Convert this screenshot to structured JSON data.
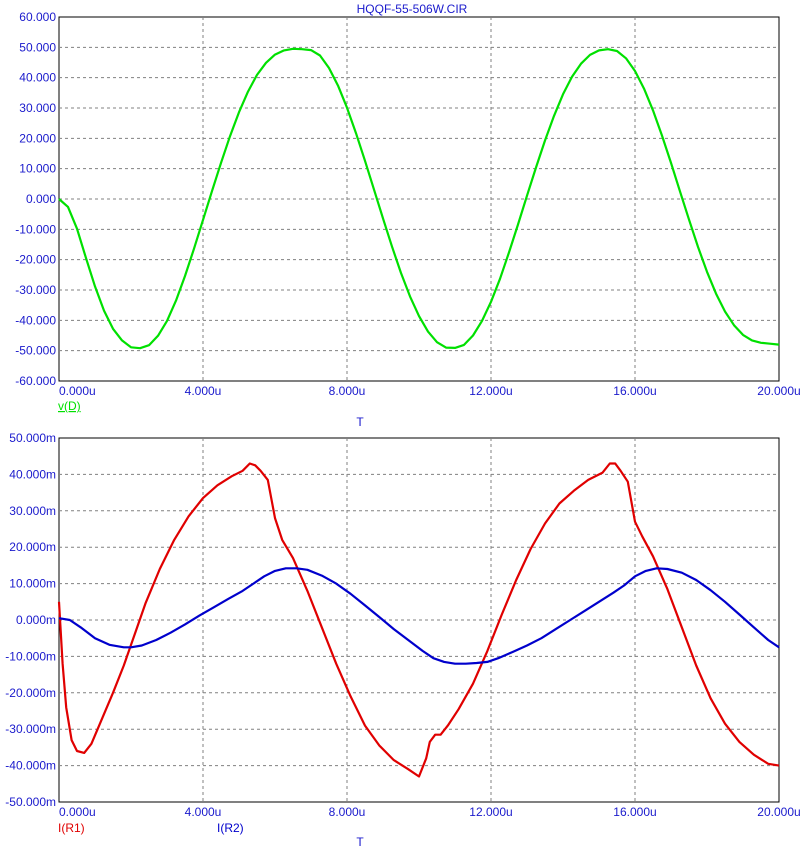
{
  "title": "HQQF-55-506W.CIR",
  "colors": {
    "axis_text": "#1a1acc",
    "grid": "#808080",
    "v_trace": "#00e000",
    "ir1_trace": "#e00000",
    "ir2_trace": "#0000cc"
  },
  "chart_data": [
    {
      "type": "line",
      "title": "HQQF-55-506W.CIR",
      "xlabel": "T",
      "xlim": [
        0,
        20
      ],
      "x_unit": "u",
      "ylim": [
        -60,
        60
      ],
      "x_ticks": [
        "0.000u",
        "4.000u",
        "8.000u",
        "12.000u",
        "16.000u",
        "20.000u"
      ],
      "y_ticks": [
        "60.000",
        "50.000",
        "40.000",
        "30.000",
        "20.000",
        "10.000",
        "0.000",
        "-10.000",
        "-20.000",
        "-30.000",
        "-40.000",
        "-50.000",
        "-60.000"
      ],
      "grid": true,
      "series": [
        {
          "name": "v(D)",
          "color": "#00e000",
          "x": [
            0,
            0.25,
            0.5,
            0.75,
            1.0,
            1.25,
            1.5,
            1.75,
            2.0,
            2.25,
            2.5,
            2.75,
            3.0,
            3.25,
            3.5,
            3.75,
            4.0,
            4.25,
            4.5,
            4.75,
            5.0,
            5.25,
            5.5,
            5.75,
            6.0,
            6.25,
            6.5,
            6.75,
            7.0,
            7.25,
            7.5,
            7.75,
            8.0,
            8.25,
            8.5,
            8.75,
            9.0,
            9.25,
            9.5,
            9.75,
            10.0,
            10.25,
            10.5,
            10.75,
            11.0,
            11.25,
            11.5,
            11.75,
            12.0,
            12.25,
            12.5,
            12.75,
            13.0,
            13.25,
            13.5,
            13.75,
            14.0,
            14.25,
            14.5,
            14.75,
            15.0,
            15.25,
            15.5,
            15.75,
            16.0,
            16.25,
            16.5,
            16.75,
            17.0,
            17.25,
            17.5,
            17.75,
            18.0,
            18.25,
            18.5,
            18.75,
            19.0,
            19.25,
            19.5,
            19.75,
            20.0
          ],
          "values": [
            0.0,
            -2.6,
            -9.8,
            -19.5,
            -28.8,
            -36.8,
            -42.8,
            -46.6,
            -48.9,
            -49.2,
            -48.2,
            -45.1,
            -40.2,
            -33.5,
            -25.4,
            -16.4,
            -6.9,
            2.6,
            11.9,
            20.7,
            28.6,
            35.4,
            40.9,
            44.9,
            47.6,
            49.0,
            49.5,
            49.4,
            49.1,
            47.3,
            43.2,
            37.4,
            30.1,
            21.7,
            12.6,
            3.1,
            -6.4,
            -15.7,
            -24.4,
            -32.1,
            -38.6,
            -43.7,
            -47.2,
            -49.0,
            -49.1,
            -48.1,
            -45.0,
            -40.2,
            -33.9,
            -26.3,
            -17.6,
            -8.4,
            1.1,
            10.4,
            19.3,
            27.4,
            34.5,
            40.3,
            44.6,
            47.5,
            49.0,
            49.4,
            48.8,
            46.4,
            42.2,
            36.4,
            29.2,
            20.9,
            11.9,
            2.5,
            -6.8,
            -15.8,
            -24.0,
            -31.2,
            -37.1,
            -41.6,
            -44.8,
            -46.6,
            -47.4,
            -47.7,
            -48.0
          ]
        }
      ]
    },
    {
      "type": "line",
      "xlabel": "T",
      "xlim": [
        0,
        20
      ],
      "x_unit": "u",
      "ylim": [
        -50,
        50
      ],
      "y_unit": "m",
      "x_ticks": [
        "0.000u",
        "4.000u",
        "8.000u",
        "12.000u",
        "16.000u",
        "20.000u"
      ],
      "y_ticks": [
        "50.000m",
        "40.000m",
        "30.000m",
        "20.000m",
        "10.000m",
        "0.000m",
        "-10.000m",
        "-20.000m",
        "-30.000m",
        "-40.000m",
        "-50.000m"
      ],
      "grid": true,
      "series": [
        {
          "name": "I(R1)",
          "color": "#e00000",
          "x": [
            0,
            0.1,
            0.2,
            0.35,
            0.5,
            0.7,
            0.9,
            1.2,
            1.5,
            1.8,
            2.1,
            2.4,
            2.8,
            3.2,
            3.6,
            4.0,
            4.4,
            4.8,
            5.1,
            5.3,
            5.45,
            5.6,
            5.8,
            6.0,
            6.2,
            6.5,
            6.9,
            7.3,
            7.7,
            8.1,
            8.5,
            8.9,
            9.3,
            9.7,
            10.0,
            10.2,
            10.3,
            10.45,
            10.6,
            10.8,
            11.1,
            11.5,
            11.9,
            12.3,
            12.7,
            13.1,
            13.5,
            13.9,
            14.3,
            14.7,
            15.1,
            15.3,
            15.45,
            15.6,
            15.8,
            16.0,
            16.2,
            16.5,
            16.9,
            17.3,
            17.7,
            18.1,
            18.5,
            18.9,
            19.3,
            19.7,
            20.0
          ],
          "values": [
            5.0,
            -12.0,
            -24.0,
            -33.0,
            -36.0,
            -36.5,
            -34.0,
            -27.0,
            -20.0,
            -12.5,
            -4.0,
            4.5,
            14.0,
            22.0,
            28.5,
            33.5,
            37.0,
            39.5,
            41.0,
            43.0,
            42.5,
            41.0,
            38.5,
            28.0,
            22.0,
            17.0,
            8.0,
            -2.0,
            -12.0,
            -21.0,
            -29.0,
            -34.5,
            -38.5,
            -41.0,
            -43.0,
            -38.0,
            -33.5,
            -31.5,
            -31.5,
            -29.0,
            -24.5,
            -17.5,
            -8.5,
            1.5,
            11.0,
            19.5,
            26.5,
            32.0,
            35.5,
            38.5,
            40.5,
            43.0,
            43.0,
            41.0,
            38.0,
            27.0,
            23.0,
            17.5,
            8.5,
            -2.0,
            -12.5,
            -21.5,
            -28.5,
            -33.5,
            -37.0,
            -39.5,
            -40.0
          ]
        },
        {
          "name": "I(R2)",
          "color": "#0000cc",
          "x": [
            0,
            0.3,
            0.6,
            1.0,
            1.4,
            1.8,
            2.0,
            2.3,
            2.7,
            3.1,
            3.5,
            3.9,
            4.3,
            4.7,
            5.1,
            5.4,
            5.7,
            6.0,
            6.3,
            6.6,
            6.9,
            7.3,
            7.7,
            8.1,
            8.5,
            8.9,
            9.3,
            9.7,
            10.1,
            10.4,
            10.7,
            11.0,
            11.3,
            11.6,
            11.9,
            12.2,
            12.6,
            13.0,
            13.4,
            13.8,
            14.2,
            14.6,
            15.0,
            15.4,
            15.7,
            16.0,
            16.3,
            16.6,
            16.9,
            17.3,
            17.7,
            18.1,
            18.5,
            18.9,
            19.3,
            19.7,
            20.0
          ],
          "values": [
            0.5,
            0.0,
            -2.0,
            -5.0,
            -6.8,
            -7.5,
            -7.5,
            -7.0,
            -5.5,
            -3.5,
            -1.2,
            1.2,
            3.5,
            5.8,
            8.0,
            10.0,
            12.0,
            13.5,
            14.2,
            14.2,
            13.8,
            12.2,
            10.0,
            7.2,
            4.0,
            0.8,
            -2.5,
            -5.5,
            -8.5,
            -10.5,
            -11.5,
            -12.0,
            -12.0,
            -11.8,
            -11.5,
            -10.5,
            -8.8,
            -7.0,
            -5.0,
            -2.5,
            0.0,
            2.5,
            5.0,
            7.5,
            9.5,
            12.0,
            13.5,
            14.2,
            14.0,
            13.0,
            11.0,
            8.2,
            5.0,
            1.5,
            -2.0,
            -5.5,
            -7.5
          ]
        }
      ]
    }
  ]
}
